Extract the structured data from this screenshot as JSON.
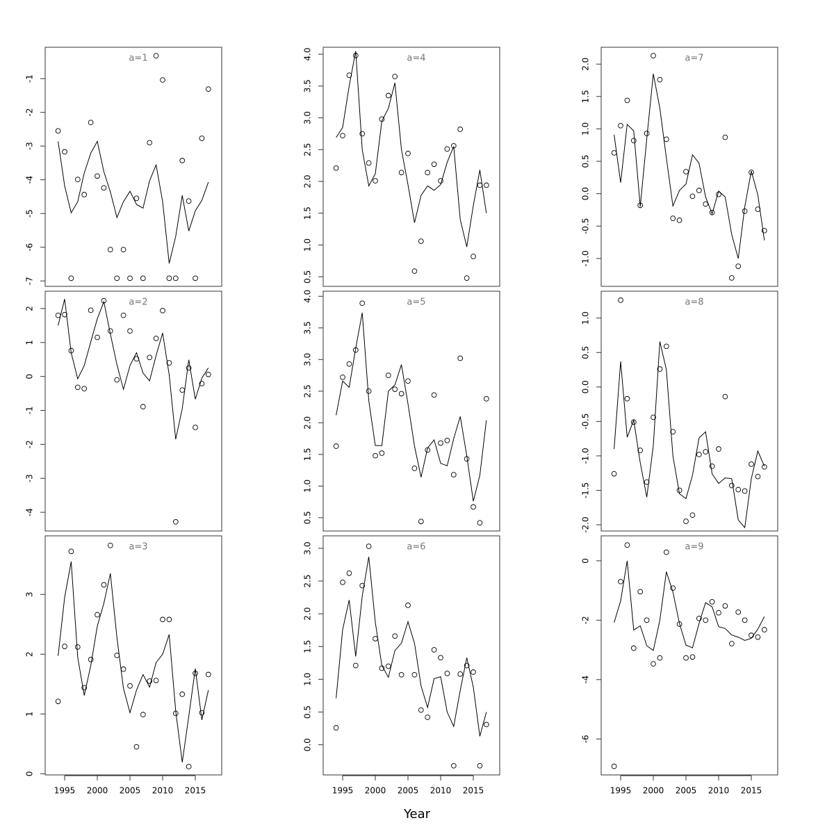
{
  "xlabel": "Year",
  "chart_data": [
    {
      "type": "line",
      "title": "a=1",
      "x": [
        1994,
        1995,
        1996,
        1997,
        1998,
        1999,
        2000,
        2001,
        2002,
        2003,
        2004,
        2005,
        2006,
        2007,
        2008,
        2009,
        2010,
        2011,
        2012,
        2013,
        2014,
        2015,
        2016,
        2017
      ],
      "series": [
        {
          "style": "points",
          "color": "#000000",
          "values": [
            -2.55,
            -3.17,
            -6.92,
            -3.99,
            -4.44,
            -2.3,
            -3.89,
            -4.24,
            -6.07,
            -6.92,
            -6.07,
            -6.92,
            -4.55,
            -6.92,
            -2.9,
            -0.32,
            -1.04,
            -6.92,
            -6.92,
            -3.43,
            -4.63,
            -6.92,
            -2.77,
            -1.31
          ]
        },
        {
          "style": "line",
          "color": "#000000",
          "values": [
            -2.86,
            -4.18,
            -4.98,
            -4.65,
            -3.8,
            -3.21,
            -2.86,
            -3.76,
            -4.36,
            -5.12,
            -4.65,
            -4.34,
            -4.73,
            -4.84,
            -4.03,
            -3.56,
            -4.65,
            -6.48,
            -5.68,
            -4.46,
            -5.52,
            -4.92,
            -4.61,
            -4.07
          ]
        }
      ],
      "xlim": [
        1992.02,
        2019.04
      ],
      "ylim": [
        -7.16,
        -0.07
      ],
      "yticks": [
        -7,
        -6,
        -5,
        -4,
        -3,
        -2,
        -1
      ]
    },
    {
      "type": "line",
      "title": "a=2",
      "x": [
        1994,
        1995,
        1996,
        1997,
        1998,
        1999,
        2000,
        2001,
        2002,
        2003,
        2004,
        2005,
        2006,
        2007,
        2008,
        2009,
        2010,
        2011,
        2012,
        2013,
        2014,
        2015,
        2016,
        2017
      ],
      "series": [
        {
          "style": "points",
          "color": "#000000",
          "values": [
            1.8,
            1.82,
            0.76,
            -0.32,
            -0.36,
            1.95,
            1.15,
            2.23,
            1.34,
            -0.1,
            1.8,
            1.34,
            0.52,
            -0.89,
            0.56,
            1.12,
            1.94,
            0.4,
            -4.28,
            -0.4,
            0.25,
            -1.5,
            -0.21,
            0.06
          ]
        },
        {
          "style": "line",
          "color": "#000000",
          "values": [
            1.5,
            2.28,
            0.7,
            -0.07,
            0.32,
            1.02,
            1.7,
            2.2,
            1.25,
            0.35,
            -0.38,
            0.32,
            0.7,
            0.1,
            -0.13,
            0.62,
            1.28,
            0.05,
            -1.85,
            -0.95,
            0.49,
            -0.67,
            -0.05,
            0.25
          ]
        }
      ],
      "xlim": [
        1992.02,
        2019.04
      ],
      "ylim": [
        -4.55,
        2.51
      ],
      "yticks": [
        -4,
        -3,
        -2,
        -1,
        0,
        1,
        2
      ]
    },
    {
      "type": "line",
      "title": "a=3",
      "x": [
        1994,
        1995,
        1996,
        1997,
        1998,
        1999,
        2000,
        2001,
        2002,
        2003,
        2004,
        2005,
        2006,
        2007,
        2008,
        2009,
        2010,
        2011,
        2012,
        2013,
        2014,
        2015,
        2016,
        2017
      ],
      "series": [
        {
          "style": "points",
          "color": "#000000",
          "values": [
            1.21,
            2.13,
            3.72,
            2.12,
            1.44,
            1.91,
            2.66,
            3.16,
            3.82,
            1.98,
            1.75,
            1.47,
            0.45,
            0.99,
            1.55,
            1.56,
            2.58,
            2.58,
            1.01,
            1.33,
            0.12,
            1.68,
            1.02,
            1.66
          ]
        },
        {
          "style": "line",
          "color": "#000000",
          "values": [
            1.97,
            2.95,
            3.55,
            1.95,
            1.31,
            1.81,
            2.47,
            2.85,
            3.35,
            2.28,
            1.43,
            1.02,
            1.4,
            1.66,
            1.45,
            1.86,
            2.0,
            2.33,
            1.05,
            0.19,
            0.96,
            1.76,
            0.9,
            1.4
          ]
        }
      ],
      "xlim": [
        1992.02,
        2019.04
      ],
      "ylim": [
        -0.02,
        3.98
      ],
      "yticks": [
        0,
        1,
        2,
        3
      ],
      "xticks": [
        1995,
        2000,
        2005,
        2010,
        2015
      ]
    },
    {
      "type": "line",
      "title": "a=4",
      "x": [
        1994,
        1995,
        1996,
        1997,
        1998,
        1999,
        2000,
        2001,
        2002,
        2003,
        2004,
        2005,
        2006,
        2007,
        2008,
        2009,
        2010,
        2011,
        2012,
        2013,
        2014,
        2015,
        2016,
        2017
      ],
      "series": [
        {
          "style": "points",
          "color": "#000000",
          "values": [
            2.21,
            2.72,
            3.67,
            3.98,
            2.75,
            2.29,
            2.01,
            2.98,
            3.35,
            3.65,
            2.14,
            2.44,
            0.59,
            1.06,
            2.14,
            2.27,
            2.01,
            2.51,
            2.56,
            2.82,
            0.48,
            0.82,
            1.94,
            1.94
          ]
        },
        {
          "style": "line",
          "color": "#000000",
          "values": [
            2.69,
            2.85,
            3.5,
            4.05,
            2.5,
            1.93,
            2.12,
            2.95,
            3.15,
            3.55,
            2.5,
            1.95,
            1.35,
            1.78,
            1.93,
            1.86,
            1.95,
            2.3,
            2.55,
            1.4,
            0.97,
            1.62,
            2.18,
            1.5
          ]
        }
      ],
      "xlim": [
        1992.02,
        2019.04
      ],
      "ylim": [
        0.35,
        4.11
      ],
      "yticks": [
        0.5,
        {
          "value": 1,
          "label": "1.0"
        },
        1.5,
        {
          "value": 2,
          "label": "2.0"
        },
        2.5,
        {
          "value": 3,
          "label": "3.0"
        },
        3.5,
        {
          "value": 4,
          "label": "4.0"
        }
      ]
    },
    {
      "type": "line",
      "title": "a=5",
      "x": [
        1994,
        1995,
        1996,
        1997,
        1998,
        1999,
        2000,
        2001,
        2002,
        2003,
        2004,
        2005,
        2006,
        2007,
        2008,
        2009,
        2010,
        2011,
        2012,
        2013,
        2014,
        2015,
        2016,
        2017
      ],
      "series": [
        {
          "style": "points",
          "color": "#000000",
          "values": [
            1.63,
            2.72,
            2.93,
            3.15,
            3.89,
            2.5,
            1.48,
            1.52,
            2.75,
            2.53,
            2.46,
            2.66,
            1.28,
            0.44,
            1.57,
            2.44,
            1.68,
            1.72,
            1.18,
            3.02,
            1.43,
            0.67,
            0.42,
            2.38
          ]
        },
        {
          "style": "line",
          "color": "#000000",
          "values": [
            2.12,
            2.66,
            2.56,
            3.18,
            3.74,
            2.35,
            1.64,
            1.64,
            2.5,
            2.6,
            2.92,
            2.3,
            1.63,
            1.14,
            1.6,
            1.73,
            1.36,
            1.32,
            1.75,
            2.1,
            1.48,
            0.76,
            1.17,
            2.04
          ]
        }
      ],
      "xlim": [
        1992.02,
        2019.04
      ],
      "ylim": [
        0.29,
        4.08
      ],
      "yticks": [
        0.5,
        {
          "value": 1,
          "label": "1.0"
        },
        1.5,
        {
          "value": 2,
          "label": "2.0"
        },
        2.5,
        {
          "value": 3,
          "label": "3.0"
        },
        3.5,
        {
          "value": 4,
          "label": "4.0"
        }
      ]
    },
    {
      "type": "line",
      "title": "a=6",
      "x": [
        1994,
        1995,
        1996,
        1997,
        1998,
        1999,
        2000,
        2001,
        2002,
        2003,
        2004,
        2005,
        2006,
        2007,
        2008,
        2009,
        2010,
        2011,
        2012,
        2013,
        2014,
        2015,
        2016,
        2017
      ],
      "series": [
        {
          "style": "points",
          "color": "#000000",
          "values": [
            0.26,
            2.48,
            2.62,
            1.21,
            2.43,
            3.03,
            1.62,
            1.17,
            1.2,
            1.66,
            1.07,
            2.13,
            1.07,
            0.53,
            0.42,
            1.45,
            1.33,
            1.09,
            -0.32,
            1.08,
            1.21,
            1.11,
            -0.32,
            0.31
          ]
        },
        {
          "style": "line",
          "color": "#000000",
          "values": [
            0.71,
            1.76,
            2.21,
            1.35,
            2.27,
            2.87,
            1.87,
            1.21,
            1.03,
            1.44,
            1.55,
            1.88,
            1.55,
            0.9,
            0.57,
            1.01,
            1.04,
            0.5,
            0.28,
            0.83,
            1.33,
            0.88,
            0.13,
            0.5
          ]
        }
      ],
      "xlim": [
        1992.02,
        2019.04
      ],
      "ylim": [
        -0.46,
        3.19
      ],
      "yticks": [
        {
          "value": 0,
          "label": "0.0"
        },
        0.5,
        {
          "value": 1,
          "label": "1.0"
        },
        1.5,
        {
          "value": 2,
          "label": "2.0"
        },
        2.5,
        {
          "value": 3,
          "label": "3.0"
        }
      ],
      "xticks": [
        1995,
        2000,
        2005,
        2010,
        2015
      ]
    },
    {
      "type": "line",
      "title": "a=7",
      "x": [
        1994,
        1995,
        1996,
        1997,
        1998,
        1999,
        2000,
        2001,
        2002,
        2003,
        2004,
        2005,
        2006,
        2007,
        2008,
        2009,
        2010,
        2011,
        2012,
        2013,
        2014,
        2015,
        2016,
        2017
      ],
      "series": [
        {
          "style": "points",
          "color": "#000000",
          "values": [
            0.63,
            1.05,
            1.44,
            0.82,
            -0.18,
            0.93,
            2.13,
            1.76,
            0.84,
            -0.38,
            -0.41,
            0.34,
            -0.04,
            0.05,
            -0.16,
            -0.29,
            -0.01,
            0.87,
            -1.3,
            -1.12,
            -0.27,
            0.33,
            -0.24,
            -0.57
          ]
        },
        {
          "style": "line",
          "color": "#000000",
          "values": [
            0.91,
            0.17,
            1.07,
            0.97,
            -0.2,
            0.85,
            1.85,
            1.32,
            0.55,
            -0.19,
            0.05,
            0.15,
            0.6,
            0.47,
            -0.05,
            -0.31,
            0.04,
            -0.05,
            -0.63,
            -1.0,
            -0.2,
            0.35,
            -0.02,
            -0.72
          ]
        }
      ],
      "xlim": [
        1992.02,
        2019.04
      ],
      "ylim": [
        -1.43,
        2.26
      ],
      "yticks": [
        {
          "value": -1,
          "label": "-1.0"
        },
        -0.5,
        {
          "value": 0,
          "label": "0.0"
        },
        0.5,
        {
          "value": 1,
          "label": "1.0"
        },
        1.5,
        {
          "value": 2,
          "label": "2.0"
        }
      ]
    },
    {
      "type": "line",
      "title": "a=8",
      "x": [
        1994,
        1995,
        1996,
        1997,
        1998,
        1999,
        2000,
        2001,
        2002,
        2003,
        2004,
        2005,
        2006,
        2007,
        2008,
        2009,
        2010,
        2011,
        2012,
        2013,
        2014,
        2015,
        2016,
        2017
      ],
      "series": [
        {
          "style": "points",
          "color": "#000000",
          "values": [
            -1.26,
            1.26,
            -0.17,
            -0.51,
            -0.92,
            -1.38,
            -0.44,
            0.26,
            0.59,
            -0.65,
            -1.5,
            -1.95,
            -1.86,
            -0.98,
            -0.94,
            -1.15,
            -0.9,
            -0.14,
            -1.43,
            -1.49,
            -1.51,
            -1.12,
            -1.3,
            -1.16
          ]
        },
        {
          "style": "line",
          "color": "#000000",
          "values": [
            -0.9,
            0.37,
            -0.73,
            -0.48,
            -1.1,
            -1.6,
            -0.85,
            0.66,
            0.25,
            -1.0,
            -1.55,
            -1.62,
            -1.28,
            -0.74,
            -0.65,
            -1.26,
            -1.4,
            -1.32,
            -1.33,
            -1.93,
            -2.04,
            -1.33,
            -0.93,
            -1.15
          ]
        }
      ],
      "xlim": [
        1992.02,
        2019.04
      ],
      "ylim": [
        -2.09,
        1.39
      ],
      "yticks": [
        {
          "value": -2,
          "label": "-2.0"
        },
        -1.5,
        {
          "value": -1,
          "label": "-1.0"
        },
        -0.5,
        {
          "value": 0,
          "label": "0.0"
        },
        0.5,
        {
          "value": 1,
          "label": "1.0"
        }
      ]
    },
    {
      "type": "line",
      "title": "a=9",
      "x": [
        1994,
        1995,
        1996,
        1997,
        1998,
        1999,
        2000,
        2001,
        2002,
        2003,
        2004,
        2005,
        2006,
        2007,
        2008,
        2009,
        2010,
        2011,
        2012,
        2013,
        2014,
        2015,
        2016,
        2017
      ],
      "series": [
        {
          "style": "points",
          "color": "#000000",
          "values": [
            -6.92,
            -0.7,
            0.53,
            -2.94,
            -1.04,
            -2.0,
            -3.47,
            -3.27,
            0.29,
            -0.92,
            -2.13,
            -3.27,
            -3.24,
            -1.94,
            -2.0,
            -1.38,
            -1.75,
            -1.52,
            -2.79,
            -1.73,
            -2.0,
            -2.51,
            -2.57,
            -2.32
          ]
        },
        {
          "style": "line",
          "color": "#000000",
          "values": [
            -2.08,
            -1.35,
            0.0,
            -2.33,
            -2.19,
            -2.86,
            -3.02,
            -2.0,
            -0.37,
            -1.05,
            -2.11,
            -2.84,
            -2.93,
            -2.11,
            -1.41,
            -1.55,
            -2.22,
            -2.28,
            -2.5,
            -2.57,
            -2.68,
            -2.61,
            -2.3,
            -1.88
          ]
        }
      ],
      "xlim": [
        1992.02,
        2019.04
      ],
      "ylim": [
        -7.21,
        0.84
      ],
      "yticks": [
        -6,
        -4,
        -2,
        0
      ],
      "xticks": [
        1995,
        2000,
        2005,
        2010,
        2015
      ]
    }
  ]
}
